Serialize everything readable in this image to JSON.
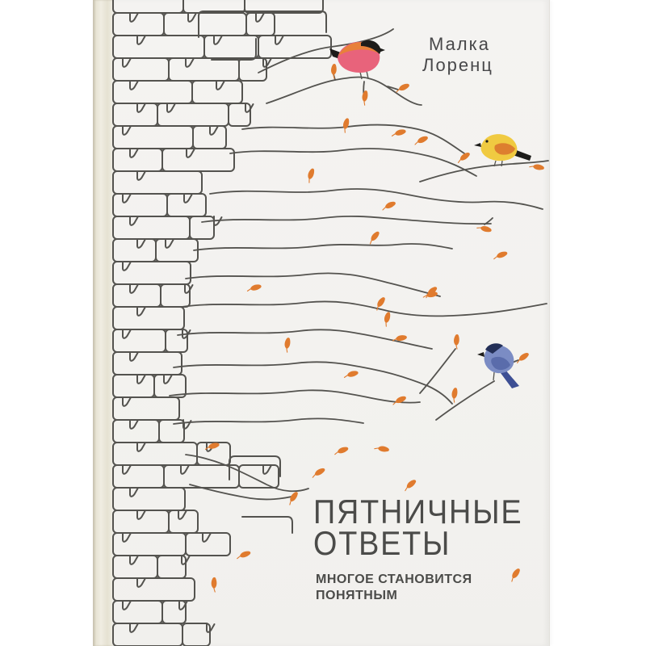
{
  "cover": {
    "author_line1": "Малка",
    "author_line2": "Лоренц",
    "title_line1": "ПЯТНИЧНЫЕ",
    "title_line2": "ОТВЕТЫ",
    "subtitle_line1": "МНОГОЕ СТАНОВИТСЯ",
    "subtitle_line2": "ПОНЯТНЫМ"
  },
  "illustration": {
    "icons": [
      "brick-wall",
      "tree-branches",
      "leaf-icon",
      "bullfinch-bird-icon",
      "yellow-bird-icon",
      "blue-bird-icon"
    ]
  },
  "colors": {
    "page_bg": "#ffffff",
    "cover_bg": "#f3f2ef",
    "spine": "#e7e3d4",
    "spine_shadow": "#c9c3b0",
    "line": "#54534f",
    "text": "#48484a",
    "leaf": "#e07b2e",
    "bullfinch_breast": "#e8637b",
    "bullfinch_wing": "#e8803a",
    "bird_black": "#1d1c1a",
    "yellow_bird_body": "#f0ca41",
    "yellow_bird_wing": "#dd7f2f",
    "blue_bird_body": "#7b8cc4",
    "blue_bird_wing": "#5a6cab",
    "blue_bird_tail": "#3d4f94",
    "blue_bird_cap": "#232f57"
  }
}
